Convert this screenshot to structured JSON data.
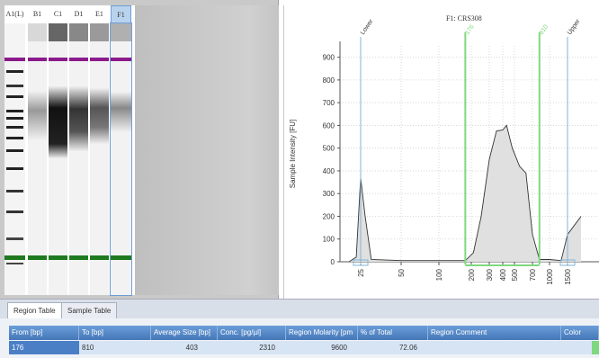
{
  "gel": {
    "lanes": [
      "A1(L)",
      "B1",
      "C1",
      "D1",
      "E1",
      "F1"
    ],
    "selected_lane": "F1"
  },
  "plot": {
    "title": "F1: CRS308",
    "ylabel": "Sample Intensity [FU]",
    "region_start_label": "176",
    "region_end_label": "810",
    "marker_lower": "Lower",
    "marker_upper": "Upper",
    "colors": {
      "trace": "#333333",
      "fill": "#e0e0e0",
      "region": "#7fd87f",
      "marker": "#7fb6d9"
    }
  },
  "chart_data": {
    "type": "area",
    "title": "F1: CRS308",
    "ylabel": "Sample Intensity [FU]",
    "xlabel": "",
    "y_ticks": [
      0,
      100,
      200,
      300,
      400,
      500,
      600,
      700,
      800,
      900
    ],
    "x_ticks": [
      "25",
      "50",
      "100",
      "200",
      "300",
      "400",
      "500",
      "700",
      "1000",
      "1500"
    ],
    "ylim": [
      0,
      950
    ],
    "series": [
      {
        "values": [
          {
            "x": 20,
            "y": 0
          },
          {
            "x": 23,
            "y": 20
          },
          {
            "x": 25,
            "y": 370
          },
          {
            "x": 27,
            "y": 200
          },
          {
            "x": 30,
            "y": 10
          },
          {
            "x": 50,
            "y": 5
          },
          {
            "x": 100,
            "y": 5
          },
          {
            "x": 176,
            "y": 5
          },
          {
            "x": 210,
            "y": 40
          },
          {
            "x": 250,
            "y": 200
          },
          {
            "x": 300,
            "y": 450
          },
          {
            "x": 350,
            "y": 575
          },
          {
            "x": 400,
            "y": 580
          },
          {
            "x": 430,
            "y": 600
          },
          {
            "x": 480,
            "y": 500
          },
          {
            "x": 550,
            "y": 420
          },
          {
            "x": 620,
            "y": 390
          },
          {
            "x": 700,
            "y": 120
          },
          {
            "x": 810,
            "y": 10
          },
          {
            "x": 1000,
            "y": 10
          },
          {
            "x": 1300,
            "y": 5
          },
          {
            "x": 1500,
            "y": 120
          },
          {
            "x": 1700,
            "y": 200
          }
        ]
      }
    ],
    "grid": true
  },
  "tabs": [
    "Region Table",
    "Sample Table"
  ],
  "table": {
    "headers": [
      "From [bp]",
      "To [bp]",
      "Average Size [bp]",
      "Conc. [pg/µl]",
      "Region Molarity [pm",
      "% of Total",
      "Region Comment",
      "Color"
    ],
    "row": [
      "176",
      "810",
      "403",
      "2310",
      "9600",
      "72.06",
      ""
    ]
  }
}
